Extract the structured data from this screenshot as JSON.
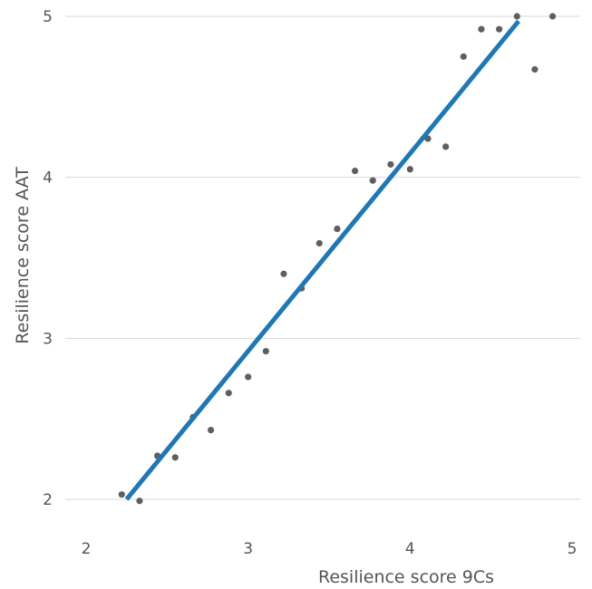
{
  "chart_data": {
    "type": "scatter",
    "xlabel": "Resilience score 9Cs",
    "ylabel": "Resilience score AAT",
    "xlim": [
      2,
      5
    ],
    "ylim": [
      2,
      5
    ],
    "x_ticks": [
      "2",
      "3",
      "4",
      "5"
    ],
    "y_ticks": [
      "2",
      "3",
      "4",
      "5"
    ],
    "grid": "horizontal",
    "colors": {
      "points": "#5f5f5f",
      "trendline": "#1f77b4",
      "grid": "#d9d9d9"
    },
    "points": [
      {
        "x": 2.22,
        "y": 2.03
      },
      {
        "x": 2.33,
        "y": 1.99
      },
      {
        "x": 2.44,
        "y": 2.27
      },
      {
        "x": 2.55,
        "y": 2.26
      },
      {
        "x": 2.66,
        "y": 2.51
      },
      {
        "x": 2.77,
        "y": 2.43
      },
      {
        "x": 2.88,
        "y": 2.66
      },
      {
        "x": 3.0,
        "y": 2.76
      },
      {
        "x": 3.11,
        "y": 2.92
      },
      {
        "x": 3.22,
        "y": 3.4
      },
      {
        "x": 3.33,
        "y": 3.31
      },
      {
        "x": 3.44,
        "y": 3.59
      },
      {
        "x": 3.55,
        "y": 3.68
      },
      {
        "x": 3.66,
        "y": 4.04
      },
      {
        "x": 3.77,
        "y": 3.98
      },
      {
        "x": 3.88,
        "y": 4.08
      },
      {
        "x": 4.0,
        "y": 4.05
      },
      {
        "x": 4.11,
        "y": 4.24
      },
      {
        "x": 4.22,
        "y": 4.19
      },
      {
        "x": 4.33,
        "y": 4.75
      },
      {
        "x": 4.44,
        "y": 4.92
      },
      {
        "x": 4.55,
        "y": 4.92
      },
      {
        "x": 4.66,
        "y": 5.0
      },
      {
        "x": 4.77,
        "y": 4.67
      },
      {
        "x": 4.88,
        "y": 5.0
      }
    ],
    "trendline": {
      "x": [
        2.25,
        4.67
      ],
      "y": [
        2.0,
        4.97
      ]
    }
  }
}
